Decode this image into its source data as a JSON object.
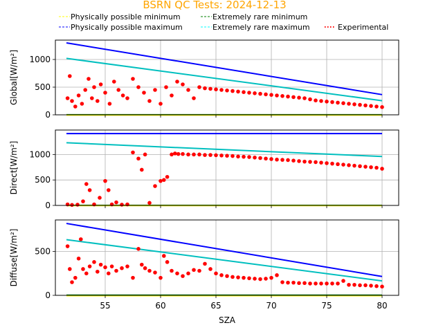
{
  "chart_data": {
    "type": "scatter",
    "title": "BSRN QC Tests: 2024-12-13",
    "title_color": "#ffa500",
    "xlabel": "SZA",
    "xlim": [
      50.5,
      81.5
    ],
    "xticks": [
      55,
      60,
      65,
      70,
      75,
      80
    ],
    "grid": true,
    "legend": {
      "placement": "top-center",
      "entries": [
        {
          "label": "Physically possible minimum",
          "color": "#ffff00",
          "style": "dashed"
        },
        {
          "label": "Physically possible maximum",
          "color": "#0000ff",
          "style": "dashed"
        },
        {
          "label": "Extremely rare minimum",
          "color": "#008000",
          "style": "dashed"
        },
        {
          "label": "Extremely rare maximum",
          "color": "#00ffff",
          "style": "dashed"
        },
        {
          "label": "Experimental",
          "color": "#ff0000",
          "style": "dotted"
        }
      ]
    },
    "panels": [
      {
        "name": "global",
        "ylabel": "Global[W/m²]",
        "ylim": [
          0,
          1350
        ],
        "yticks": [
          0,
          500,
          1000
        ],
        "series": [
          {
            "name": "Physically possible maximum",
            "color": "#0000ff",
            "x": [
              51.5,
              80
            ],
            "y": [
              1300,
              365
            ]
          },
          {
            "name": "Extremely rare maximum",
            "color": "#00bfbf",
            "x": [
              51.5,
              80
            ],
            "y": [
              1020,
              255
            ]
          },
          {
            "name": "Extremely rare minimum",
            "color": "#008000",
            "x": [
              51.5,
              80
            ],
            "y": [
              2,
              2
            ]
          },
          {
            "name": "Physically possible minimum",
            "color": "#ffff00",
            "x": [
              51.5,
              80
            ],
            "y": [
              -4,
              -4
            ]
          }
        ],
        "experimental": {
          "color": "#ff0000",
          "x": [
            51.6,
            51.8,
            52.0,
            52.3,
            52.6,
            52.9,
            53.2,
            53.5,
            53.8,
            54.0,
            54.3,
            54.6,
            55.0,
            55.4,
            55.8,
            56.2,
            56.6,
            57.0,
            57.5,
            58.0,
            58.5,
            59.0,
            59.5,
            60.0,
            60.5,
            61.0,
            61.5,
            62.0,
            62.5,
            63.0,
            63.5,
            64.0,
            64.5,
            65.0,
            65.5,
            66.0,
            66.5,
            67.0,
            67.5,
            68.0,
            68.5,
            69.0,
            69.5,
            70.0,
            70.5,
            71.0,
            71.5,
            72.0,
            72.5,
            73.0,
            73.5,
            74.0,
            74.5,
            75.0,
            75.5,
            76.0,
            76.5,
            77.0,
            77.5,
            78.0,
            78.5,
            79.0,
            79.5,
            80.0
          ],
          "y": [
            300,
            700,
            250,
            150,
            350,
            200,
            450,
            650,
            300,
            500,
            250,
            550,
            400,
            200,
            600,
            450,
            350,
            300,
            650,
            500,
            400,
            250,
            450,
            200,
            500,
            350,
            600,
            550,
            450,
            300,
            500,
            480,
            470,
            460,
            450,
            440,
            430,
            420,
            410,
            400,
            390,
            380,
            370,
            360,
            350,
            340,
            330,
            320,
            310,
            300,
            280,
            260,
            250,
            240,
            230,
            220,
            210,
            200,
            190,
            180,
            170,
            160,
            150,
            140
          ]
        }
      },
      {
        "name": "direct",
        "ylabel": "Direct[W/m²]",
        "ylim": [
          0,
          1480
        ],
        "yticks": [
          0,
          500,
          1000
        ],
        "series": [
          {
            "name": "Physically possible maximum",
            "color": "#0000ff",
            "x": [
              51.5,
              80
            ],
            "y": [
              1410,
              1410
            ]
          },
          {
            "name": "Extremely rare maximum",
            "color": "#00bfbf",
            "x": [
              51.5,
              80
            ],
            "y": [
              1230,
              960
            ]
          },
          {
            "name": "Extremely rare minimum",
            "color": "#008000",
            "x": [
              51.5,
              80
            ],
            "y": [
              2,
              2
            ]
          },
          {
            "name": "Physically possible minimum",
            "color": "#ffff00",
            "x": [
              51.5,
              80
            ],
            "y": [
              -4,
              -4
            ]
          }
        ],
        "experimental": {
          "color": "#ff0000",
          "x": [
            51.6,
            52.0,
            52.5,
            53.0,
            53.3,
            53.6,
            54.0,
            54.5,
            55.0,
            55.3,
            55.6,
            56.0,
            56.5,
            57.0,
            57.5,
            58.0,
            58.3,
            58.6,
            59.0,
            59.5,
            60.0,
            60.3,
            60.6,
            61.0,
            61.3,
            61.6,
            62.0,
            62.5,
            63.0,
            63.5,
            64.0,
            64.5,
            65.0,
            65.5,
            66.0,
            66.5,
            67.0,
            67.5,
            68.0,
            68.5,
            69.0,
            69.5,
            70.0,
            70.5,
            71.0,
            71.5,
            72.0,
            72.5,
            73.0,
            73.5,
            74.0,
            74.5,
            75.0,
            75.5,
            76.0,
            76.5,
            77.0,
            77.5,
            78.0,
            78.5,
            79.0,
            79.5,
            80.0
          ],
          "y": [
            20,
            10,
            15,
            80,
            420,
            300,
            20,
            150,
            480,
            300,
            20,
            60,
            15,
            20,
            1040,
            920,
            700,
            1000,
            50,
            380,
            480,
            500,
            560,
            1000,
            1020,
            1010,
            1010,
            1000,
            1000,
            1000,
            990,
            990,
            985,
            980,
            975,
            970,
            960,
            955,
            950,
            940,
            930,
            920,
            910,
            900,
            895,
            890,
            880,
            870,
            860,
            855,
            850,
            840,
            830,
            820,
            810,
            800,
            790,
            780,
            770,
            760,
            750,
            740,
            720
          ]
        }
      },
      {
        "name": "diffuse",
        "ylabel": "Diffuse[W/m²]",
        "ylim": [
          0,
          860
        ],
        "yticks": [
          0,
          500
        ],
        "series": [
          {
            "name": "Physically possible maximum",
            "color": "#0000ff",
            "x": [
              51.5,
              80
            ],
            "y": [
              820,
              215
            ]
          },
          {
            "name": "Extremely rare maximum",
            "color": "#00bfbf",
            "x": [
              51.5,
              80
            ],
            "y": [
              635,
              165
            ]
          },
          {
            "name": "Extremely rare minimum",
            "color": "#008000",
            "x": [
              51.5,
              80
            ],
            "y": [
              2,
              2
            ]
          },
          {
            "name": "Physically possible minimum",
            "color": "#ffff00",
            "x": [
              51.5,
              80
            ],
            "y": [
              -4,
              -4
            ]
          }
        ],
        "experimental": {
          "color": "#ff0000",
          "x": [
            51.6,
            51.8,
            52.0,
            52.3,
            52.6,
            52.8,
            53.0,
            53.3,
            53.6,
            54.0,
            54.3,
            54.6,
            55.0,
            55.3,
            55.6,
            56.0,
            56.5,
            57.0,
            57.5,
            58.0,
            58.3,
            58.6,
            59.0,
            59.5,
            60.0,
            60.3,
            60.6,
            61.0,
            61.5,
            62.0,
            62.5,
            63.0,
            63.5,
            64.0,
            64.5,
            65.0,
            65.5,
            66.0,
            66.5,
            67.0,
            67.5,
            68.0,
            68.5,
            69.0,
            69.5,
            70.0,
            70.5,
            71.0,
            71.5,
            72.0,
            72.5,
            73.0,
            73.5,
            74.0,
            74.5,
            75.0,
            75.5,
            76.0,
            76.5,
            77.0,
            77.5,
            78.0,
            78.5,
            79.0,
            79.5,
            80.0
          ],
          "y": [
            560,
            300,
            150,
            200,
            420,
            640,
            300,
            250,
            330,
            380,
            270,
            350,
            320,
            250,
            330,
            280,
            310,
            330,
            200,
            530,
            350,
            310,
            280,
            260,
            200,
            450,
            380,
            280,
            250,
            220,
            250,
            290,
            280,
            360,
            300,
            250,
            230,
            220,
            210,
            205,
            200,
            195,
            190,
            185,
            190,
            200,
            230,
            150,
            145,
            145,
            140,
            140,
            135,
            135,
            135,
            135,
            135,
            135,
            165,
            120,
            120,
            115,
            115,
            110,
            105,
            100
          ]
        }
      }
    ]
  }
}
